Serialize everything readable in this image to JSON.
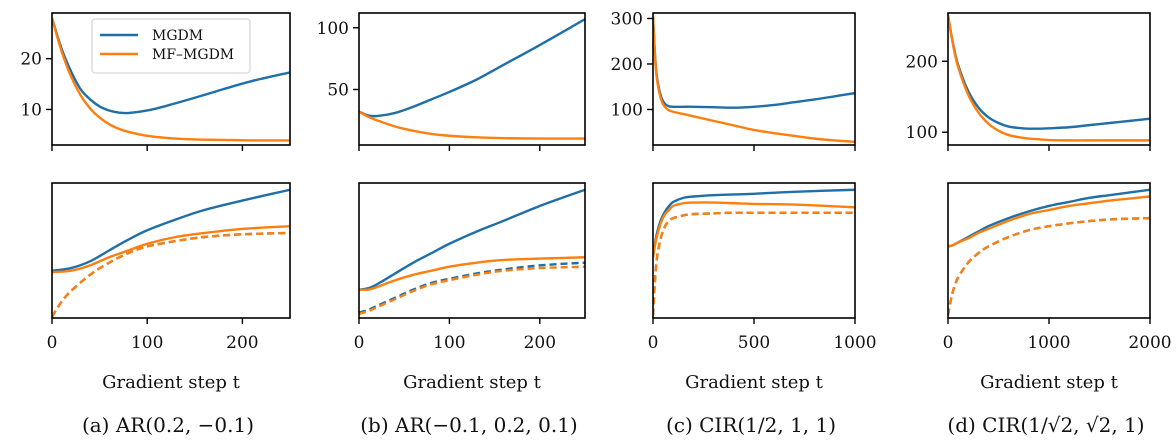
{
  "colors": {
    "mgdm": "#1f6fa8",
    "mf_mgdm": "#ff7f0e",
    "axis": "#000000"
  },
  "legend": {
    "placement": "top-right of panel (a) upper plot",
    "entries": [
      {
        "label": "MGDM",
        "color": "#1f6fa8"
      },
      {
        "label": "MF–MGDM",
        "color": "#ff7f0e"
      }
    ]
  },
  "chart_data": [
    {
      "type": "line",
      "panel": "a",
      "caption": "(a) AR(0.2, −0.1)",
      "xlabel": "Gradient step t",
      "xlim": [
        0,
        250
      ],
      "xticks": [
        0,
        100,
        200
      ],
      "xtick_labels": [
        "0",
        "100",
        "200"
      ],
      "top": {
        "ylim": [
          3,
          29
        ],
        "yticks": [
          10,
          20
        ],
        "ytick_labels": [
          "10",
          "20"
        ],
        "series": [
          {
            "name": "MGDM",
            "x": [
              0,
              10,
              20,
              30,
              40,
              50,
              60,
              70,
              80,
              100,
              120,
              150,
              180,
              210,
              250
            ],
            "y": [
              28,
              22,
              17.5,
              14,
              12,
              10.6,
              9.8,
              9.4,
              9.3,
              9.8,
              10.7,
              12.3,
              14,
              15.6,
              17.3
            ]
          },
          {
            "name": "MF–MGDM",
            "x": [
              0,
              10,
              20,
              30,
              40,
              50,
              60,
              70,
              80,
              100,
              120,
              150,
              180,
              210,
              250
            ],
            "y": [
              28,
              21.5,
              16.5,
              12.8,
              10.2,
              8.4,
              7.1,
              6.2,
              5.6,
              4.8,
              4.4,
              4.1,
              4.0,
              3.9,
              3.9
            ]
          }
        ]
      },
      "bottom": {
        "ylim": [
          0,
          1
        ],
        "yticks": [],
        "series": [
          {
            "name": "MGDM",
            "style": "solid",
            "x": [
              0,
              20,
              40,
              60,
              80,
              100,
              130,
              160,
              200,
              250
            ],
            "y": [
              0.35,
              0.37,
              0.42,
              0.5,
              0.58,
              0.65,
              0.73,
              0.8,
              0.87,
              0.95
            ]
          },
          {
            "name": "MF–MGDM",
            "style": "solid",
            "x": [
              0,
              20,
              40,
              60,
              80,
              100,
              130,
              160,
              200,
              250
            ],
            "y": [
              0.34,
              0.35,
              0.39,
              0.45,
              0.5,
              0.55,
              0.6,
              0.63,
              0.66,
              0.68
            ]
          },
          {
            "name": "MGDM",
            "style": "dashed",
            "x": [
              0,
              10,
              20,
              40,
              60,
              80,
              100,
              130,
              160,
              200,
              250
            ],
            "y": [
              0.01,
              0.12,
              0.2,
              0.32,
              0.41,
              0.48,
              0.53,
              0.57,
              0.6,
              0.62,
              0.63
            ]
          },
          {
            "name": "MF–MGDM",
            "style": "dashed",
            "x": [
              0,
              10,
              20,
              40,
              60,
              80,
              100,
              130,
              160,
              200,
              250
            ],
            "y": [
              0.01,
              0.12,
              0.2,
              0.32,
              0.41,
              0.48,
              0.53,
              0.57,
              0.6,
              0.62,
              0.63
            ]
          }
        ]
      }
    },
    {
      "type": "line",
      "panel": "b",
      "caption": "(b) AR(−0.1, 0.2, 0.1)",
      "xlabel": "Gradient step t",
      "xlim": [
        0,
        250
      ],
      "xticks": [
        0,
        100,
        200
      ],
      "xtick_labels": [
        "0",
        "100",
        "200"
      ],
      "top": {
        "ylim": [
          5,
          112
        ],
        "yticks": [
          50,
          100
        ],
        "ytick_labels": [
          "50",
          "100"
        ],
        "series": [
          {
            "name": "MGDM",
            "x": [
              0,
              10,
              20,
              40,
              60,
              80,
              100,
              130,
              160,
              200,
              250
            ],
            "y": [
              32,
              29,
              28.5,
              31,
              36,
              42,
              48,
              58,
              70,
              86,
              107
            ]
          },
          {
            "name": "MF–MGDM",
            "x": [
              0,
              10,
              20,
              40,
              60,
              80,
              100,
              130,
              160,
              200,
              250
            ],
            "y": [
              32,
              28,
              25,
              20,
              16.5,
              14,
              12.5,
              11.2,
              10.5,
              10.2,
              10.2
            ]
          }
        ]
      },
      "bottom": {
        "ylim": [
          0,
          1
        ],
        "yticks": [],
        "series": [
          {
            "name": "MGDM",
            "style": "solid",
            "x": [
              0,
              10,
              20,
              40,
              60,
              80,
              100,
              130,
              160,
              200,
              250
            ],
            "y": [
              0.21,
              0.22,
              0.25,
              0.33,
              0.41,
              0.48,
              0.55,
              0.64,
              0.72,
              0.83,
              0.95
            ]
          },
          {
            "name": "MF–MGDM",
            "style": "solid",
            "x": [
              0,
              10,
              20,
              40,
              60,
              80,
              100,
              130,
              160,
              200,
              250
            ],
            "y": [
              0.21,
              0.21,
              0.23,
              0.28,
              0.32,
              0.35,
              0.38,
              0.41,
              0.43,
              0.44,
              0.45
            ]
          },
          {
            "name": "MGDM",
            "style": "dashed",
            "x": [
              0,
              10,
              20,
              40,
              60,
              80,
              100,
              130,
              160,
              200,
              250
            ],
            "y": [
              0.04,
              0.06,
              0.09,
              0.15,
              0.21,
              0.26,
              0.29,
              0.33,
              0.36,
              0.39,
              0.41
            ]
          },
          {
            "name": "MF–MGDM",
            "style": "dashed",
            "x": [
              0,
              10,
              20,
              40,
              60,
              80,
              100,
              130,
              160,
              200,
              250
            ],
            "y": [
              0.03,
              0.05,
              0.08,
              0.14,
              0.2,
              0.25,
              0.28,
              0.32,
              0.35,
              0.37,
              0.38
            ]
          }
        ]
      }
    },
    {
      "type": "line",
      "panel": "c",
      "caption": "(c) CIR(1/2, 1, 1)",
      "xlabel": "Gradient step t",
      "xlim": [
        0,
        1000
      ],
      "xticks": [
        0,
        500,
        1000
      ],
      "xtick_labels": [
        "0",
        "500",
        "1000"
      ],
      "top": {
        "ylim": [
          22,
          312
        ],
        "yticks": [
          100,
          200,
          300
        ],
        "ytick_labels": [
          "100",
          "200",
          "300"
        ],
        "series": [
          {
            "name": "MGDM",
            "x": [
              0,
              10,
              20,
              40,
              60,
              80,
              100,
              150,
              200,
              300,
              400,
              500,
              600,
              700,
              800,
              900,
              1000
            ],
            "y": [
              305,
              220,
              170,
              128,
              112,
              107,
              106,
              106,
              106,
              105,
              104,
              106,
              110,
              116,
              122,
              129,
              136
            ]
          },
          {
            "name": "MF–MGDM",
            "x": [
              0,
              10,
              20,
              40,
              60,
              80,
              100,
              150,
              200,
              300,
              400,
              500,
              600,
              700,
              800,
              900,
              1000
            ],
            "y": [
              305,
              215,
              165,
              122,
              105,
              98,
              95,
              90,
              85,
              75,
              65,
              55,
              48,
              42,
              36,
              32,
              29
            ]
          }
        ]
      },
      "bottom": {
        "ylim": [
          0,
          1
        ],
        "yticks": [],
        "series": [
          {
            "name": "MGDM",
            "style": "solid",
            "x": [
              0,
              10,
              20,
              40,
              60,
              80,
              100,
              150,
              200,
              300,
              400,
              500,
              700,
              1000
            ],
            "y": [
              0.45,
              0.55,
              0.63,
              0.73,
              0.79,
              0.83,
              0.86,
              0.89,
              0.9,
              0.91,
              0.915,
              0.92,
              0.935,
              0.95
            ]
          },
          {
            "name": "MF–MGDM",
            "style": "solid",
            "x": [
              0,
              10,
              20,
              40,
              60,
              80,
              100,
              150,
              200,
              300,
              400,
              500,
              700,
              1000
            ],
            "y": [
              0.45,
              0.54,
              0.61,
              0.71,
              0.77,
              0.8,
              0.83,
              0.85,
              0.855,
              0.855,
              0.85,
              0.845,
              0.84,
              0.82
            ]
          },
          {
            "name": "MGDM",
            "style": "dashed",
            "x": [
              0,
              10,
              20,
              40,
              60,
              80,
              100,
              150,
              200,
              300,
              400,
              500,
              700,
              1000
            ],
            "y": [
              0.02,
              0.28,
              0.45,
              0.6,
              0.68,
              0.72,
              0.74,
              0.76,
              0.77,
              0.775,
              0.78,
              0.78,
              0.78,
              0.78
            ]
          },
          {
            "name": "MF–MGDM",
            "style": "dashed",
            "x": [
              0,
              10,
              20,
              40,
              60,
              80,
              100,
              150,
              200,
              300,
              400,
              500,
              700,
              1000
            ],
            "y": [
              0.02,
              0.28,
              0.45,
              0.6,
              0.68,
              0.72,
              0.74,
              0.76,
              0.77,
              0.775,
              0.78,
              0.78,
              0.78,
              0.78
            ]
          }
        ]
      }
    },
    {
      "type": "line",
      "panel": "d",
      "caption": "(d) CIR(1/√2, √2, 1)",
      "xlabel": "Gradient step t",
      "xlim": [
        0,
        2000
      ],
      "xticks": [
        0,
        1000,
        2000
      ],
      "xtick_labels": [
        "0",
        "1000",
        "2000"
      ],
      "top": {
        "ylim": [
          82,
          268
        ],
        "yticks": [
          100,
          200
        ],
        "ytick_labels": [
          "100",
          "200"
        ],
        "series": [
          {
            "name": "MGDM",
            "x": [
              0,
              50,
              100,
              200,
              300,
              400,
              500,
              600,
              700,
              800,
              900,
              1000,
              1200,
              1400,
              1600,
              1800,
              2000
            ],
            "y": [
              265,
              225,
              195,
              158,
              135,
              121,
              113,
              108,
              106,
              105,
              105,
              105.5,
              107,
              110,
              113,
              116,
              119
            ]
          },
          {
            "name": "MF–MGDM",
            "x": [
              0,
              50,
              100,
              200,
              300,
              400,
              500,
              600,
              700,
              800,
              900,
              1000,
              1200,
              1400,
              1600,
              1800,
              2000
            ],
            "y": [
              265,
              223,
              192,
              153,
              128,
              112,
              102,
              96,
              93,
              91,
              90,
              89,
              88.5,
              88.5,
              88.5,
              88.5,
              88.5
            ]
          }
        ]
      },
      "bottom": {
        "ylim": [
          0,
          1
        ],
        "yticks": [],
        "series": [
          {
            "name": "MGDM",
            "style": "solid",
            "x": [
              0,
              50,
              100,
              200,
              300,
              400,
              600,
              800,
              1000,
              1200,
              1400,
              1600,
              1800,
              2000
            ],
            "y": [
              0.53,
              0.54,
              0.56,
              0.6,
              0.64,
              0.68,
              0.74,
              0.79,
              0.83,
              0.86,
              0.89,
              0.91,
              0.93,
              0.95
            ]
          },
          {
            "name": "MF–MGDM",
            "style": "solid",
            "x": [
              0,
              50,
              100,
              200,
              300,
              400,
              600,
              800,
              1000,
              1200,
              1400,
              1600,
              1800,
              2000
            ],
            "y": [
              0.53,
              0.54,
              0.56,
              0.59,
              0.63,
              0.66,
              0.72,
              0.77,
              0.8,
              0.83,
              0.85,
              0.87,
              0.885,
              0.9
            ]
          },
          {
            "name": "MGDM",
            "style": "dashed",
            "x": [
              0,
              25,
              50,
              100,
              200,
              300,
              400,
              600,
              800,
              1000,
              1300,
              1600,
              2000
            ],
            "y": [
              0.02,
              0.12,
              0.2,
              0.3,
              0.41,
              0.48,
              0.53,
              0.6,
              0.65,
              0.68,
              0.71,
              0.73,
              0.74
            ]
          },
          {
            "name": "MF–MGDM",
            "style": "dashed",
            "x": [
              0,
              25,
              50,
              100,
              200,
              300,
              400,
              600,
              800,
              1000,
              1300,
              1600,
              2000
            ],
            "y": [
              0.02,
              0.12,
              0.2,
              0.3,
              0.41,
              0.48,
              0.53,
              0.6,
              0.65,
              0.68,
              0.71,
              0.73,
              0.74
            ]
          }
        ]
      }
    }
  ]
}
